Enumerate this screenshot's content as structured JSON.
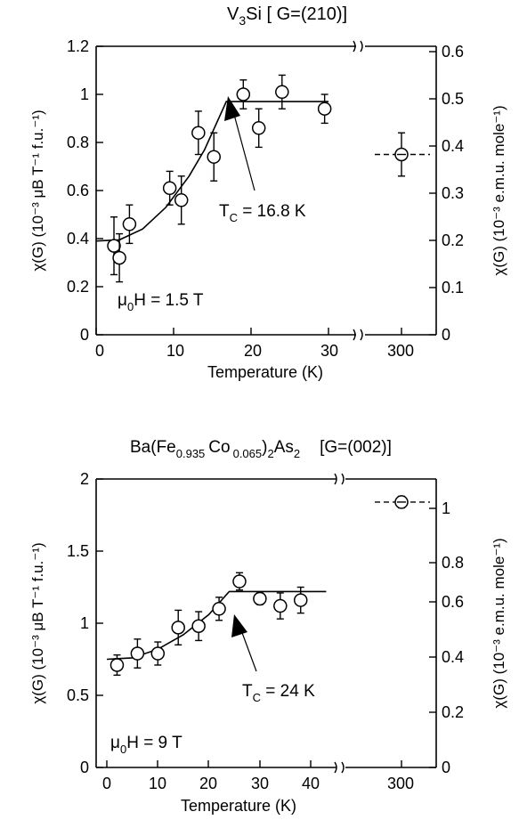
{
  "chart_data": [
    {
      "type": "scatter",
      "title_main": "V",
      "title_sub": "3",
      "title_rest": "Si  [ G=(210)]",
      "xlabel": "Temperature (K)",
      "ylabel_left": "χ(G) (10⁻³ μB T⁻¹ f.u.⁻¹)",
      "ylabel_right": "χ(G) (10⁻³ e.m.u. mole⁻¹)",
      "xlim": [
        0,
        30
      ],
      "ylim": [
        0,
        1.2
      ],
      "x_ticks": [
        "0",
        "10",
        "20",
        "30"
      ],
      "x_break_tick": "300",
      "y_ticks_left": [
        "0",
        "0.2",
        "0.4",
        "0.6",
        "0.8",
        "1",
        "1.2"
      ],
      "y_ticks_right": [
        "0",
        "0.1",
        "0.2",
        "0.3",
        "0.4",
        "0.5",
        "0.6"
      ],
      "field_label": "μ0H = 1.5 T",
      "tc_label": "TC = 16.8 K",
      "points": [
        {
          "x": 2.3,
          "y": 0.37,
          "err": 0.12
        },
        {
          "x": 3.0,
          "y": 0.32,
          "err": 0.1
        },
        {
          "x": 4.3,
          "y": 0.46,
          "err": 0.08
        },
        {
          "x": 9.5,
          "y": 0.61,
          "err": 0.07
        },
        {
          "x": 11.0,
          "y": 0.56,
          "err": 0.1
        },
        {
          "x": 13.2,
          "y": 0.84,
          "err": 0.09
        },
        {
          "x": 15.2,
          "y": 0.74,
          "err": 0.1
        },
        {
          "x": 19.0,
          "y": 1.0,
          "err": 0.06
        },
        {
          "x": 21.0,
          "y": 0.86,
          "err": 0.08
        },
        {
          "x": 24.0,
          "y": 1.01,
          "err": 0.07
        },
        {
          "x": 29.5,
          "y": 0.94,
          "err": 0.06
        }
      ],
      "extra_point": {
        "x": 300,
        "y": 0.75,
        "err": 0.09
      },
      "fit_curve": [
        [
          0,
          0.39
        ],
        [
          3,
          0.395
        ],
        [
          6,
          0.44
        ],
        [
          9,
          0.53
        ],
        [
          12,
          0.66
        ],
        [
          14,
          0.77
        ],
        [
          16.8,
          0.97
        ],
        [
          30,
          0.97
        ]
      ]
    },
    {
      "type": "scatter",
      "title_main": "Ba(Fe",
      "title_sub1": "0.935",
      "title_mid": "Co",
      "title_sub2": "0.065",
      "title_mid2": ")",
      "title_sub3": "2",
      "title_mid3": "As",
      "title_sub4": "2",
      "title_tag": "[G=(002)]",
      "xlabel": "Temperature (K)",
      "ylabel_left": "χ(G) (10⁻³ μB T⁻¹ f.u.⁻¹)",
      "ylabel_right": "χ(G) (10⁻³ e.m.u. mole⁻¹)",
      "xlim": [
        0,
        46
      ],
      "ylim": [
        0,
        2
      ],
      "x_ticks": [
        "0",
        "10",
        "20",
        "30",
        "40"
      ],
      "x_break_tick": "300",
      "y_ticks_left": [
        "0",
        "0.5",
        "1",
        "1.5",
        "2"
      ],
      "y_ticks_right": [
        "0",
        "0.2",
        "0.4",
        "0.6",
        "0.8",
        "1"
      ],
      "field_label": "μ0H = 9 T",
      "tc_label": "TC = 24 K",
      "points": [
        {
          "x": 2,
          "y": 0.71,
          "err": 0.07
        },
        {
          "x": 6,
          "y": 0.79,
          "err": 0.1
        },
        {
          "x": 10,
          "y": 0.79,
          "err": 0.08
        },
        {
          "x": 14,
          "y": 0.97,
          "err": 0.12
        },
        {
          "x": 18,
          "y": 0.98,
          "err": 0.1
        },
        {
          "x": 22,
          "y": 1.1,
          "err": 0.08
        },
        {
          "x": 26,
          "y": 1.29,
          "err": 0.06
        },
        {
          "x": 30,
          "y": 1.17,
          "err": 0.04
        },
        {
          "x": 34,
          "y": 1.12,
          "err": 0.09
        },
        {
          "x": 38,
          "y": 1.16,
          "err": 0.09
        }
      ],
      "extra_point": {
        "x": 300,
        "y": 1.84,
        "err": 0.04
      },
      "fit_curve": [
        [
          0,
          0.75
        ],
        [
          5,
          0.76
        ],
        [
          10,
          0.82
        ],
        [
          15,
          0.92
        ],
        [
          20,
          1.06
        ],
        [
          24,
          1.22
        ],
        [
          43,
          1.22
        ]
      ]
    }
  ]
}
